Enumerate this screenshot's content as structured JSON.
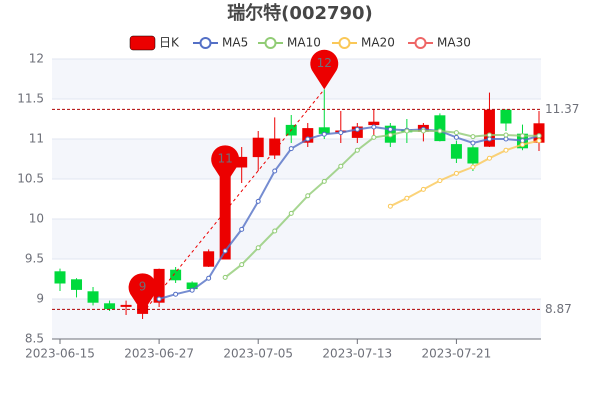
{
  "chart_data": {
    "type": "candlestick",
    "title": "瑞尔特(002790)",
    "categories": [
      "2023-06-15",
      null,
      null,
      null,
      null,
      null,
      "2023-06-27",
      null,
      null,
      null,
      null,
      null,
      "2023-07-05",
      null,
      null,
      null,
      null,
      null,
      "2023-07-13",
      null,
      null,
      null,
      null,
      null,
      "2023-07-21",
      null,
      null,
      null,
      null,
      null
    ],
    "ylim": [
      8.5,
      12
    ],
    "yticks": [
      8.5,
      9,
      9.5,
      10,
      10.5,
      11,
      11.5,
      12
    ],
    "grid": true,
    "series": [
      {
        "name": "日K",
        "color": "#ec0000",
        "down_color": "#00da3c",
        "open": [
          9.34,
          9.24,
          9.09,
          8.94,
          8.92,
          8.82,
          8.96,
          9.36,
          9.2,
          9.41,
          9.5,
          10.65,
          10.78,
          10.8,
          11.17,
          10.96,
          11.14,
          11.1,
          11.02,
          11.18,
          11.16,
          11.11,
          11.1,
          11.29,
          10.93,
          10.89,
          10.91,
          11.36,
          11.06,
          10.96
        ],
        "close": [
          9.2,
          9.12,
          8.96,
          8.88,
          8.92,
          8.92,
          9.37,
          9.24,
          9.13,
          9.59,
          10.55,
          10.77,
          11.01,
          11.0,
          11.05,
          11.13,
          11.07,
          11.1,
          11.15,
          11.21,
          10.96,
          11.09,
          11.17,
          10.98,
          10.76,
          10.7,
          11.36,
          11.2,
          10.89,
          11.19
        ],
        "low": [
          9.1,
          9.02,
          8.92,
          8.85,
          8.8,
          8.75,
          8.9,
          9.2,
          9.1,
          9.4,
          9.5,
          10.45,
          10.6,
          10.75,
          10.95,
          10.9,
          11.0,
          10.95,
          10.95,
          11.05,
          10.9,
          10.95,
          10.97,
          10.97,
          10.7,
          10.6,
          10.9,
          11.1,
          10.86,
          10.85
        ],
        "high": [
          9.38,
          9.26,
          9.15,
          8.98,
          8.98,
          8.96,
          9.38,
          9.4,
          9.22,
          9.62,
          10.55,
          10.9,
          11.1,
          11.27,
          11.3,
          11.2,
          11.62,
          11.35,
          11.2,
          11.37,
          11.2,
          11.25,
          11.2,
          11.32,
          10.98,
          10.92,
          11.58,
          11.37,
          11.18,
          11.35
        ]
      },
      {
        "name": "MA5",
        "color": "#5470c6",
        "values": [
          null,
          null,
          null,
          null,
          null,
          null,
          9.0,
          9.06,
          9.11,
          9.26,
          9.6,
          9.87,
          10.22,
          10.6,
          10.88,
          11.0,
          11.06,
          11.08,
          11.12,
          11.15,
          11.12,
          11.11,
          11.12,
          11.1,
          11.02,
          10.95,
          11.0,
          11.0,
          10.98,
          11.04
        ]
      },
      {
        "name": "MA10",
        "color": "#91cc75",
        "values": [
          null,
          null,
          null,
          null,
          null,
          null,
          null,
          null,
          null,
          null,
          9.27,
          9.43,
          9.64,
          9.85,
          10.07,
          10.29,
          10.47,
          10.66,
          10.86,
          11.02,
          11.05,
          11.1,
          11.1,
          11.1,
          11.08,
          11.03,
          11.05,
          11.05,
          11.04,
          11.04
        ]
      },
      {
        "name": "MA20",
        "color": "#fac858",
        "values": [
          null,
          null,
          null,
          null,
          null,
          null,
          null,
          null,
          null,
          null,
          null,
          null,
          null,
          null,
          null,
          null,
          null,
          null,
          null,
          null,
          10.16,
          10.26,
          10.37,
          10.48,
          10.57,
          10.65,
          10.76,
          10.86,
          10.93,
          10.98
        ]
      },
      {
        "name": "MA30",
        "color": "#ee6666",
        "values": [
          null,
          null,
          null,
          null,
          null,
          null,
          null,
          null,
          null,
          null,
          null,
          null,
          null,
          null,
          null,
          null,
          null,
          null,
          null,
          null,
          null,
          null,
          null,
          null,
          null,
          null,
          null,
          null,
          null,
          null
        ]
      }
    ],
    "markpoints": [
      9,
      11,
      12
    ],
    "marklines": [
      11.37,
      8.87
    ],
    "markline_color": "#b00000"
  }
}
